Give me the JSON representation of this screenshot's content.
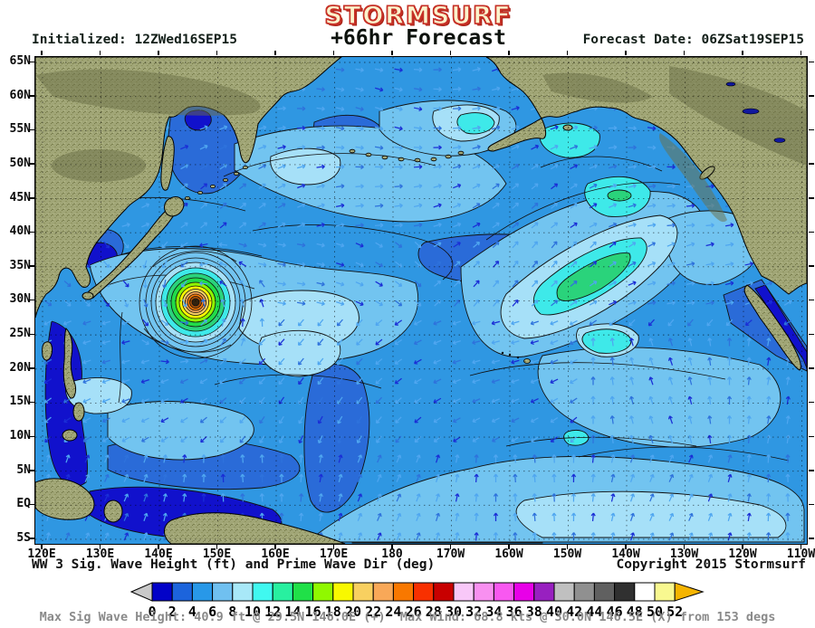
{
  "header": {
    "logo": "STORMSURF",
    "initialized": "Initialized: 12ZWed16SEP15",
    "forecast_title": "+66hr Forecast",
    "forecast_date": "Forecast Date: 06ZSat19SEP15"
  },
  "map": {
    "lat_labels": [
      "65N",
      "60N",
      "55N",
      "50N",
      "45N",
      "40N",
      "35N",
      "30N",
      "25N",
      "20N",
      "15N",
      "10N",
      "5N",
      "EQ",
      "5S"
    ],
    "lon_labels": [
      "120E",
      "130E",
      "140E",
      "150E",
      "160E",
      "170E",
      "180",
      "170W",
      "160W",
      "150W",
      "140W",
      "130W",
      "120W",
      "110W"
    ],
    "land_color": "#A1A677",
    "ocean_base_color": "#2F97E2"
  },
  "caption": {
    "left": "WW 3 Sig. Wave Height (ft) and Prime Wave Dir (deg)",
    "right": "Copyright 2015 Stormsurf"
  },
  "colorbar": {
    "tick_labels": [
      "0",
      "2",
      "4",
      "6",
      "8",
      "10",
      "12",
      "14",
      "16",
      "18",
      "20",
      "22",
      "24",
      "26",
      "28",
      "30",
      "32",
      "34",
      "36",
      "38",
      "40",
      "42",
      "44",
      "46",
      "48",
      "50",
      "52"
    ],
    "cell_colors": [
      "#0202C8",
      "#1C64DC",
      "#2898E8",
      "#70C0F0",
      "#A8E8F8",
      "#40F8F0",
      "#28F0A0",
      "#20E048",
      "#90F800",
      "#F8F800",
      "#F8D060",
      "#F8A858",
      "#F87800",
      "#F83000",
      "#C80000",
      "#F8C8F8",
      "#F890F0",
      "#F858F0",
      "#E800E8",
      "#9820C0",
      "#C0C0C0",
      "#909090",
      "#606060",
      "#303030",
      "#FFFFFF",
      "#F8F890"
    ],
    "left_arrow_color": "#C9C9C9",
    "right_arrow_color": "#F5B400"
  },
  "footer": {
    "max_text": "Max Sig Wave Height: 40.9 ft @ 29.5N 146.0E (+)  Max Wind: 68.8 kts @ 30.0N 146.5E (X) from 153 degs"
  },
  "chart_data": {
    "type": "heatmap",
    "title": "STORMSURF +66hr Forecast",
    "variable": "WW 3 Sig. Wave Height (ft) and Prime Wave Dir (deg)",
    "initialized": "12ZWed16SEP15",
    "forecast_date": "06ZSat19SEP15",
    "x_ticks": [
      "120E",
      "130E",
      "140E",
      "150E",
      "160E",
      "170E",
      "180",
      "170W",
      "160W",
      "150W",
      "140W",
      "130W",
      "120W",
      "110W"
    ],
    "y_ticks": [
      "65N",
      "60N",
      "55N",
      "50N",
      "45N",
      "40N",
      "35N",
      "30N",
      "25N",
      "20N",
      "15N",
      "10N",
      "5N",
      "EQ",
      "5S"
    ],
    "scale_ft": [
      0,
      2,
      4,
      6,
      8,
      10,
      12,
      14,
      16,
      18,
      20,
      22,
      24,
      26,
      28,
      30,
      32,
      34,
      36,
      38,
      40,
      42,
      44,
      46,
      48,
      50,
      52
    ],
    "scale_colors": [
      "#0202C8",
      "#1C64DC",
      "#2898E8",
      "#70C0F0",
      "#A8E8F8",
      "#40F8F0",
      "#28F0A0",
      "#20E048",
      "#90F800",
      "#F8F800",
      "#F8D060",
      "#F8A858",
      "#F87800",
      "#F83000",
      "#C80000",
      "#F8C8F8",
      "#F890F0",
      "#F858F0",
      "#E800E8",
      "#9820C0",
      "#C0C0C0",
      "#909090",
      "#606060",
      "#303030",
      "#FFFFFF",
      "#F8F890"
    ],
    "max_sig_wave_height_ft": 40.9,
    "max_wave_location": "29.5N 146.0E",
    "max_wave_marker": "+",
    "max_wind_kts": 68.8,
    "max_wind_location": "30.0N 146.5E",
    "max_wind_marker": "X",
    "max_wind_from_deg": 153,
    "legend_position": "bottom",
    "grid": "dotted, 10deg lon x 5deg lat"
  }
}
